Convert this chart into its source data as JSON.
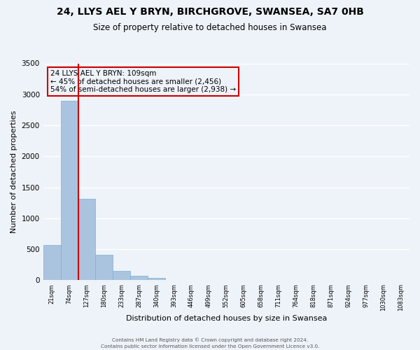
{
  "title": "24, LLYS AEL Y BRYN, BIRCHGROVE, SWANSEA, SA7 0HB",
  "subtitle": "Size of property relative to detached houses in Swansea",
  "xlabel": "Distribution of detached houses by size in Swansea",
  "ylabel": "Number of detached properties",
  "bar_color": "#aac4e0",
  "bar_edge_color": "#7bafd4",
  "categories": [
    "21sqm",
    "74sqm",
    "127sqm",
    "180sqm",
    "233sqm",
    "287sqm",
    "340sqm",
    "393sqm",
    "446sqm",
    "499sqm",
    "552sqm",
    "605sqm",
    "658sqm",
    "711sqm",
    "764sqm",
    "818sqm",
    "871sqm",
    "924sqm",
    "977sqm",
    "1030sqm",
    "1083sqm"
  ],
  "values": [
    575,
    2900,
    1310,
    415,
    155,
    70,
    40,
    0,
    0,
    0,
    0,
    0,
    0,
    0,
    0,
    0,
    0,
    0,
    0,
    0,
    0
  ],
  "annotation_line1": "24 LLYS AEL Y BRYN: 109sqm",
  "annotation_line2": "← 45% of detached houses are smaller (2,456)",
  "annotation_line3": "54% of semi-detached houses are larger (2,938) →",
  "ylim": [
    0,
    3500
  ],
  "yticks": [
    0,
    500,
    1000,
    1500,
    2000,
    2500,
    3000,
    3500
  ],
  "footer1": "Contains HM Land Registry data © Crown copyright and database right 2024.",
  "footer2": "Contains public sector information licensed under the Open Government Licence v3.0.",
  "bg_color": "#eef3f9",
  "grid_color": "#ffffff",
  "title_fontsize": 10,
  "subtitle_fontsize": 8.5,
  "annotation_box_edge_color": "#cc0000",
  "red_line_color": "#cc0000",
  "red_line_x": 1.5
}
